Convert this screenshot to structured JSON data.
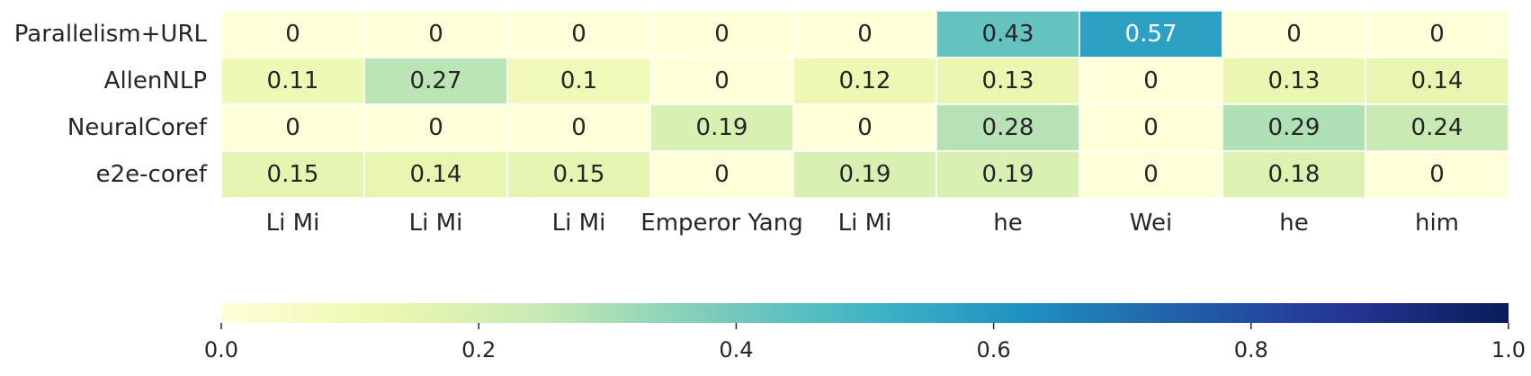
{
  "chart_data": {
    "type": "heatmap",
    "rows": [
      "Parallelism+URL",
      "AllenNLP",
      "NeuralCoref",
      "e2e-coref"
    ],
    "columns": [
      "Li Mi",
      "Li Mi",
      "Li Mi",
      "Emperor Yang",
      "Li Mi",
      "he",
      "Wei",
      "he",
      "him"
    ],
    "values": [
      [
        0,
        0,
        0,
        0,
        0,
        0.43,
        0.57,
        0,
        0
      ],
      [
        0.11,
        0.27,
        0.1,
        0,
        0.12,
        0.13,
        0,
        0.13,
        0.14
      ],
      [
        0,
        0,
        0,
        0.19,
        0,
        0.28,
        0,
        0.29,
        0.24
      ],
      [
        0.15,
        0.14,
        0.15,
        0,
        0.19,
        0.19,
        0,
        0.18,
        0
      ]
    ],
    "value_labels": [
      [
        "0",
        "0",
        "0",
        "0",
        "0",
        "0.43",
        "0.57",
        "0",
        "0"
      ],
      [
        "0.11",
        "0.27",
        "0.1",
        "0",
        "0.12",
        "0.13",
        "0",
        "0.13",
        "0.14"
      ],
      [
        "0",
        "0",
        "0",
        "0.19",
        "0",
        "0.28",
        "0",
        "0.29",
        "0.24"
      ],
      [
        "0.15",
        "0.14",
        "0.15",
        "0",
        "0.19",
        "0.19",
        "0",
        "0.18",
        "0"
      ]
    ],
    "colormap": "YlGnBu",
    "vmin": 0.0,
    "vmax": 1.0,
    "colorbar": {
      "orientation": "horizontal",
      "ticks": [
        0.0,
        0.2,
        0.4,
        0.6,
        0.8,
        1.0
      ],
      "tick_labels": [
        "0.0",
        "0.2",
        "0.4",
        "0.6",
        "0.8",
        "1.0"
      ]
    },
    "cell_border_color": "#ffffff",
    "text_color_dark": "#262626",
    "text_color_light": "#ffffff"
  }
}
